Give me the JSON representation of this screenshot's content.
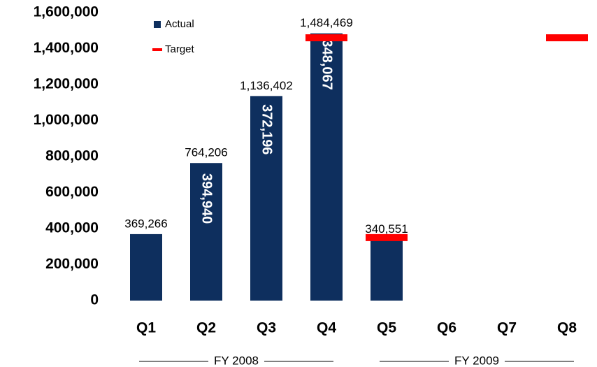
{
  "chart_data": {
    "type": "bar",
    "categories": [
      "Q1",
      "Q2",
      "Q3",
      "Q4",
      "Q5",
      "Q6",
      "Q7",
      "Q8"
    ],
    "series": [
      {
        "name": "Actual",
        "color": "#0e2f5e",
        "values": [
          369266,
          764206,
          1136402,
          1484469,
          340551,
          null,
          null,
          null
        ],
        "value_labels": [
          "369,266",
          "764,206",
          "1,136,402",
          "1,484,469",
          "340,551",
          null,
          null,
          null
        ]
      },
      {
        "name": "Target",
        "color": "#ff0000",
        "values": [
          null,
          null,
          null,
          1460000,
          350000,
          null,
          null,
          1460000
        ]
      }
    ],
    "increments": {
      "values": [
        null,
        394940,
        372196,
        348067,
        null,
        null,
        null,
        null
      ],
      "value_labels": [
        null,
        "394,940",
        "372,196",
        "348,067",
        null,
        null,
        null,
        null
      ]
    },
    "groups": [
      {
        "label": "FY 2008",
        "categories": [
          "Q1",
          "Q4"
        ]
      },
      {
        "label": "FY 2009",
        "categories": [
          "Q5",
          "Q8"
        ]
      }
    ],
    "ylim": [
      0,
      1600000
    ],
    "yticks": [
      0,
      {
        "value": 200000,
        "label": "200,000"
      },
      {
        "value": 400000,
        "label": "400,000"
      },
      {
        "value": 600000,
        "label": "600,000"
      },
      {
        "value": 800000,
        "label": "800,000"
      },
      {
        "value": 1000000,
        "label": "1,000,000"
      },
      {
        "value": 1200000,
        "label": "1,200,000"
      },
      {
        "value": 1400000,
        "label": "1,400,000"
      },
      {
        "value": 1600000,
        "label": "1,600,000"
      }
    ],
    "grid": false,
    "legend": "upper-left"
  }
}
